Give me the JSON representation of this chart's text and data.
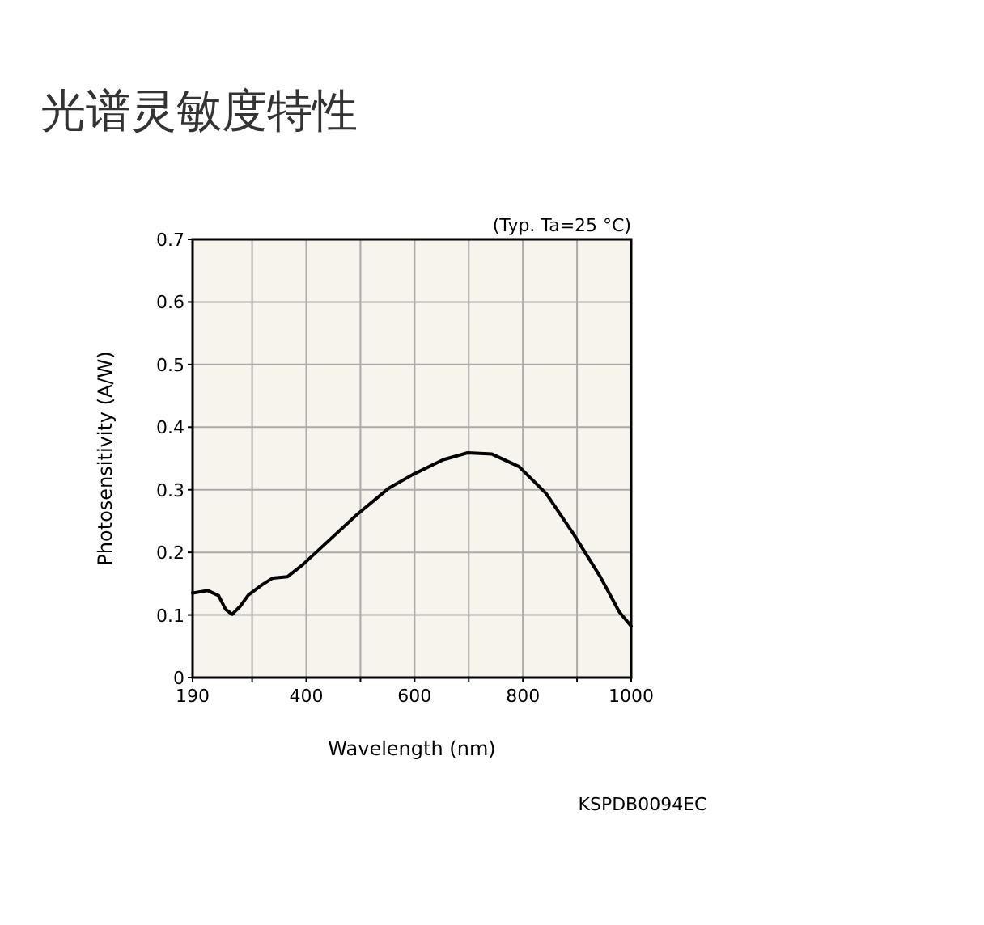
{
  "chart_data": {
    "type": "line",
    "title": "光谱灵敏度特性",
    "xlabel": "Wavelength (nm)",
    "ylabel": "Photosensitivity  (A/W)",
    "annotations": [
      "(Typ. Ta=25 °C)",
      "KSPDB0094EC"
    ],
    "x": [
      190,
      218,
      238,
      251,
      263,
      278,
      293,
      318,
      338,
      365,
      393,
      433,
      493,
      553,
      596,
      653,
      698,
      743,
      793,
      843,
      893,
      943,
      978,
      1000
    ],
    "series": [
      {
        "color": "#000000",
        "values": [
          0.135,
          0.139,
          0.131,
          0.109,
          0.101,
          0.114,
          0.132,
          0.148,
          0.159,
          0.161,
          0.18,
          0.212,
          0.26,
          0.303,
          0.324,
          0.348,
          0.359,
          0.357,
          0.337,
          0.294,
          0.23,
          0.161,
          0.105,
          0.082
        ]
      }
    ],
    "xlim": [
      190,
      1000
    ],
    "xticks": [
      190,
      {
        "value": 300,
        "label": null
      },
      400,
      {
        "value": 500,
        "label": null
      },
      600,
      {
        "value": 700,
        "label": null
      },
      800,
      {
        "value": 900,
        "label": null
      },
      1000
    ],
    "ylim": [
      0,
      0.7
    ],
    "yticks": [
      0,
      0.1,
      0.2,
      0.3,
      0.4,
      0.5,
      0.6,
      0.7
    ],
    "grid": true,
    "marker": "none",
    "line_style": "solid"
  }
}
